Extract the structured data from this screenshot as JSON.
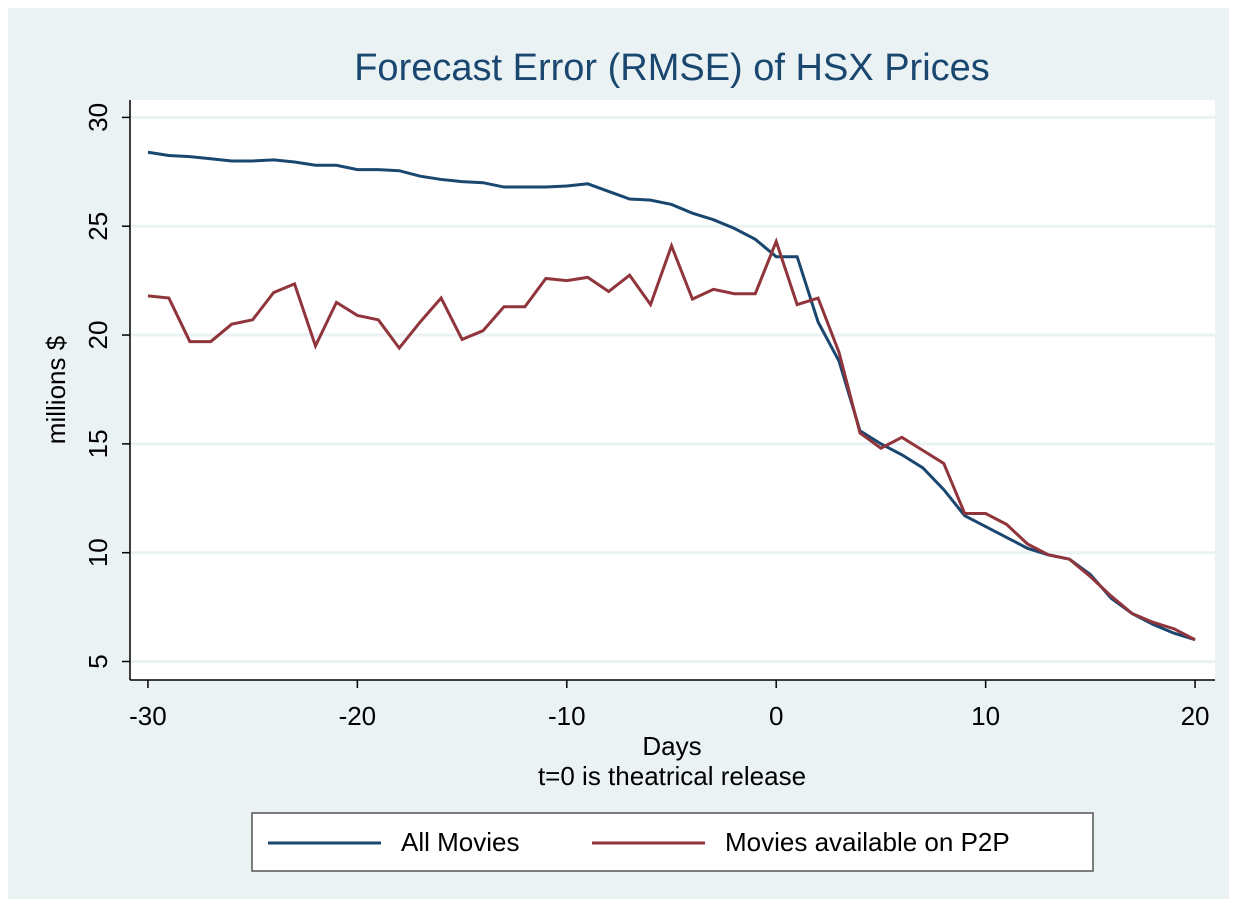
{
  "chart_data": {
    "type": "line",
    "title": "Forecast Error (RMSE) of HSX Prices",
    "xlabel": [
      "Days",
      "t=0 is theatrical release"
    ],
    "ylabel": "millions $",
    "x": [
      -30,
      -29,
      -28,
      -27,
      -26,
      -25,
      -24,
      -23,
      -22,
      -21,
      -20,
      -19,
      -18,
      -17,
      -16,
      -15,
      -14,
      -13,
      -12,
      -11,
      -10,
      -9,
      -8,
      -7,
      -6,
      -5,
      -4,
      -3,
      -2,
      -1,
      0,
      1,
      2,
      3,
      4,
      5,
      6,
      7,
      8,
      9,
      10,
      11,
      12,
      13,
      14,
      15,
      16,
      17,
      18,
      19,
      20
    ],
    "series": [
      {
        "name": "All Movies",
        "color": "#1a476f",
        "values": [
          28.4,
          28.25,
          28.2,
          28.1,
          28.0,
          28.0,
          28.05,
          27.95,
          27.8,
          27.8,
          27.6,
          27.6,
          27.55,
          27.3,
          27.15,
          27.05,
          27.0,
          26.8,
          26.8,
          26.8,
          26.85,
          26.95,
          26.6,
          26.25,
          26.2,
          26.0,
          25.6,
          25.3,
          24.9,
          24.4,
          23.6,
          23.6,
          20.6,
          18.8,
          15.6,
          15.0,
          14.5,
          13.9,
          12.9,
          11.7,
          11.2,
          10.7,
          10.2,
          9.9,
          9.7,
          9.0,
          7.9,
          7.2,
          6.7,
          6.3,
          6.0
        ]
      },
      {
        "name": "Movies available on P2P",
        "color": "#90353b",
        "values": [
          21.8,
          21.7,
          19.7,
          19.7,
          20.5,
          20.7,
          21.95,
          22.35,
          19.5,
          21.5,
          20.9,
          20.7,
          19.4,
          20.6,
          21.7,
          19.8,
          20.2,
          21.3,
          21.3,
          22.6,
          22.5,
          22.65,
          22.0,
          22.75,
          21.4,
          24.1,
          21.65,
          22.1,
          21.9,
          21.9,
          24.3,
          21.4,
          21.7,
          19.2,
          15.5,
          14.8,
          15.3,
          14.7,
          14.1,
          11.8,
          11.8,
          11.3,
          10.4,
          9.9,
          9.7,
          8.9,
          8.0,
          7.2,
          6.8,
          6.5,
          6.0
        ]
      }
    ],
    "xlim": [
      -31,
      21
    ],
    "xticks": [
      -30,
      -20,
      -10,
      0,
      10,
      20
    ],
    "ylim": [
      4.15,
      30.8
    ],
    "yticks": [
      5,
      10,
      15,
      20,
      25,
      30
    ],
    "grid": true,
    "legend": "bottom"
  }
}
